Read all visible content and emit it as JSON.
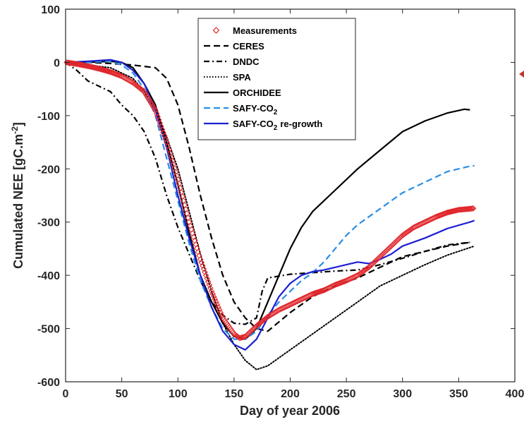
{
  "chart_data": {
    "type": "line",
    "xlabel": "Day of year 2006",
    "ylabel": "Cumulated NEE [gC.m",
    "ylabel_sup": "-2",
    "ylabel_end": "]",
    "xlim": [
      0,
      400
    ],
    "ylim": [
      -600,
      100
    ],
    "xticks": [
      0,
      50,
      100,
      150,
      200,
      250,
      300,
      350,
      400
    ],
    "yticks": [
      -600,
      -500,
      -400,
      -300,
      -200,
      -100,
      0,
      100
    ],
    "grid": false,
    "legend": "top-center",
    "colors": {
      "measurements": "#e0262b",
      "ceres": "#000000",
      "dndc": "#000000",
      "spa": "#000000",
      "orchidee": "#000000",
      "safy": "#2b8ee3",
      "safy_regrowth": "#1c1fd1"
    },
    "series": [
      {
        "name": "Measurements",
        "style": "markers",
        "color": "#e0262b",
        "points": [
          [
            1,
            0
          ],
          [
            10,
            -3
          ],
          [
            20,
            -7
          ],
          [
            30,
            -12
          ],
          [
            40,
            -18
          ],
          [
            50,
            -26
          ],
          [
            60,
            -38
          ],
          [
            70,
            -55
          ],
          [
            80,
            -90
          ],
          [
            90,
            -150
          ],
          [
            100,
            -220
          ],
          [
            110,
            -300
          ],
          [
            120,
            -370
          ],
          [
            130,
            -430
          ],
          [
            140,
            -480
          ],
          [
            150,
            -510
          ],
          [
            155,
            -518
          ],
          [
            160,
            -515
          ],
          [
            170,
            -495
          ],
          [
            180,
            -478
          ],
          [
            190,
            -465
          ],
          [
            200,
            -455
          ],
          [
            210,
            -445
          ],
          [
            220,
            -435
          ],
          [
            230,
            -428
          ],
          [
            240,
            -418
          ],
          [
            250,
            -410
          ],
          [
            260,
            -400
          ],
          [
            270,
            -385
          ],
          [
            280,
            -365
          ],
          [
            290,
            -345
          ],
          [
            300,
            -325
          ],
          [
            310,
            -310
          ],
          [
            320,
            -300
          ],
          [
            330,
            -290
          ],
          [
            340,
            -282
          ],
          [
            350,
            -277
          ],
          [
            360,
            -275
          ],
          [
            364,
            -274
          ]
        ]
      },
      {
        "name": "CERES",
        "style": "dashed",
        "color": "#000000",
        "points": [
          [
            0,
            0
          ],
          [
            20,
            0
          ],
          [
            40,
            -2
          ],
          [
            60,
            -5
          ],
          [
            80,
            -10
          ],
          [
            90,
            -30
          ],
          [
            100,
            -80
          ],
          [
            110,
            -160
          ],
          [
            120,
            -250
          ],
          [
            130,
            -330
          ],
          [
            140,
            -400
          ],
          [
            150,
            -450
          ],
          [
            160,
            -480
          ],
          [
            170,
            -500
          ],
          [
            180,
            -505
          ],
          [
            200,
            -470
          ],
          [
            220,
            -440
          ],
          [
            240,
            -420
          ],
          [
            260,
            -405
          ],
          [
            280,
            -385
          ],
          [
            300,
            -365
          ],
          [
            320,
            -355
          ],
          [
            340,
            -345
          ],
          [
            360,
            -338
          ]
        ]
      },
      {
        "name": "DNDC",
        "style": "dashdot",
        "color": "#000000",
        "points": [
          [
            0,
            0
          ],
          [
            10,
            -15
          ],
          [
            20,
            -35
          ],
          [
            30,
            -45
          ],
          [
            40,
            -55
          ],
          [
            50,
            -80
          ],
          [
            60,
            -100
          ],
          [
            70,
            -130
          ],
          [
            80,
            -180
          ],
          [
            90,
            -250
          ],
          [
            100,
            -310
          ],
          [
            110,
            -360
          ],
          [
            120,
            -410
          ],
          [
            130,
            -450
          ],
          [
            140,
            -475
          ],
          [
            150,
            -490
          ],
          [
            160,
            -492
          ],
          [
            170,
            -480
          ],
          [
            175,
            -430
          ],
          [
            180,
            -405
          ],
          [
            200,
            -398
          ],
          [
            220,
            -395
          ],
          [
            240,
            -392
          ],
          [
            260,
            -390
          ],
          [
            280,
            -380
          ],
          [
            300,
            -368
          ],
          [
            320,
            -355
          ],
          [
            340,
            -343
          ],
          [
            360,
            -338
          ]
        ]
      },
      {
        "name": "SPA",
        "style": "dotted",
        "color": "#000000",
        "points": [
          [
            0,
            0
          ],
          [
            20,
            -5
          ],
          [
            40,
            -10
          ],
          [
            60,
            -30
          ],
          [
            70,
            -55
          ],
          [
            80,
            -90
          ],
          [
            90,
            -140
          ],
          [
            100,
            -200
          ],
          [
            110,
            -280
          ],
          [
            120,
            -360
          ],
          [
            130,
            -430
          ],
          [
            140,
            -490
          ],
          [
            150,
            -530
          ],
          [
            160,
            -560
          ],
          [
            170,
            -577
          ],
          [
            180,
            -570
          ],
          [
            200,
            -540
          ],
          [
            220,
            -510
          ],
          [
            240,
            -480
          ],
          [
            260,
            -450
          ],
          [
            280,
            -420
          ],
          [
            300,
            -400
          ],
          [
            320,
            -380
          ],
          [
            340,
            -362
          ],
          [
            364,
            -345
          ]
        ]
      },
      {
        "name": "ORCHIDEE",
        "style": "solid",
        "color": "#000000",
        "points": [
          [
            0,
            0
          ],
          [
            20,
            0
          ],
          [
            40,
            2
          ],
          [
            50,
            0
          ],
          [
            60,
            -10
          ],
          [
            70,
            -40
          ],
          [
            80,
            -80
          ],
          [
            90,
            -150
          ],
          [
            100,
            -230
          ],
          [
            110,
            -320
          ],
          [
            120,
            -400
          ],
          [
            130,
            -450
          ],
          [
            140,
            -490
          ],
          [
            150,
            -515
          ],
          [
            160,
            -520
          ],
          [
            170,
            -500
          ],
          [
            180,
            -450
          ],
          [
            190,
            -400
          ],
          [
            200,
            -350
          ],
          [
            210,
            -310
          ],
          [
            220,
            -280
          ],
          [
            240,
            -240
          ],
          [
            260,
            -200
          ],
          [
            280,
            -165
          ],
          [
            300,
            -130
          ],
          [
            320,
            -110
          ],
          [
            340,
            -95
          ],
          [
            355,
            -88
          ],
          [
            360,
            -89
          ]
        ]
      },
      {
        "name": "SAFY-CO",
        "name_sub": "2",
        "style": "dashed",
        "color": "#2b8ee3",
        "points": [
          [
            0,
            0
          ],
          [
            20,
            0
          ],
          [
            40,
            2
          ],
          [
            50,
            -5
          ],
          [
            60,
            -20
          ],
          [
            70,
            -50
          ],
          [
            80,
            -100
          ],
          [
            90,
            -180
          ],
          [
            100,
            -260
          ],
          [
            110,
            -340
          ],
          [
            120,
            -410
          ],
          [
            130,
            -460
          ],
          [
            140,
            -500
          ],
          [
            150,
            -520
          ],
          [
            160,
            -520
          ],
          [
            170,
            -505
          ],
          [
            180,
            -475
          ],
          [
            190,
            -450
          ],
          [
            200,
            -430
          ],
          [
            210,
            -410
          ],
          [
            220,
            -395
          ],
          [
            230,
            -375
          ],
          [
            240,
            -350
          ],
          [
            250,
            -325
          ],
          [
            260,
            -305
          ],
          [
            270,
            -290
          ],
          [
            280,
            -275
          ],
          [
            290,
            -260
          ],
          [
            300,
            -245
          ],
          [
            320,
            -225
          ],
          [
            340,
            -205
          ],
          [
            360,
            -195
          ],
          [
            364,
            -194
          ]
        ]
      },
      {
        "name": "SAFY-CO",
        "name_sub": "2",
        "name_suffix": "re-growth",
        "style": "solid",
        "color": "#1c1fd1",
        "points": [
          [
            0,
            0
          ],
          [
            20,
            2
          ],
          [
            40,
            5
          ],
          [
            50,
            0
          ],
          [
            60,
            -15
          ],
          [
            70,
            -40
          ],
          [
            80,
            -90
          ],
          [
            90,
            -160
          ],
          [
            100,
            -250
          ],
          [
            110,
            -330
          ],
          [
            120,
            -400
          ],
          [
            130,
            -460
          ],
          [
            140,
            -505
          ],
          [
            150,
            -530
          ],
          [
            160,
            -540
          ],
          [
            170,
            -520
          ],
          [
            180,
            -480
          ],
          [
            190,
            -440
          ],
          [
            200,
            -415
          ],
          [
            210,
            -400
          ],
          [
            220,
            -393
          ],
          [
            230,
            -390
          ],
          [
            240,
            -385
          ],
          [
            250,
            -380
          ],
          [
            260,
            -375
          ],
          [
            270,
            -378
          ],
          [
            280,
            -370
          ],
          [
            290,
            -360
          ],
          [
            300,
            -345
          ],
          [
            320,
            -330
          ],
          [
            340,
            -312
          ],
          [
            360,
            -300
          ],
          [
            364,
            -297
          ]
        ]
      }
    ]
  }
}
